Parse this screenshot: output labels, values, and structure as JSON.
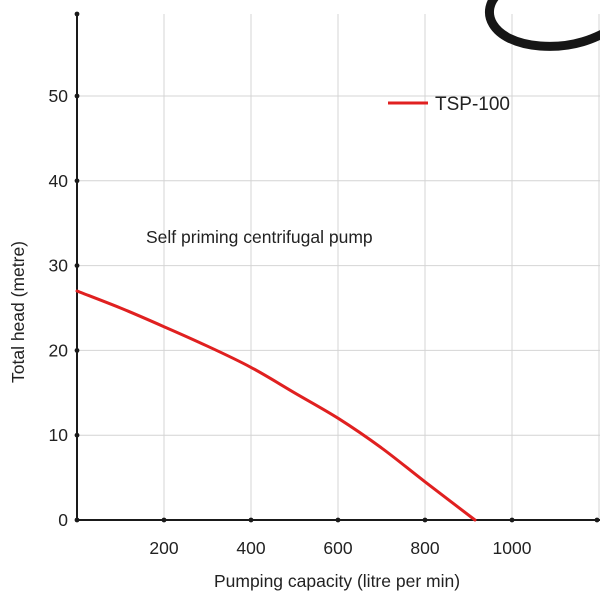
{
  "colors": {
    "series": "#e02020",
    "axis": "#1a1a1a",
    "grid": "#d4d4d4",
    "text": "#222222"
  },
  "chart_data": {
    "type": "line",
    "title": "",
    "annotation": "Self priming centrifugal pump",
    "xlabel": "Pumping capacity (litre per min)",
    "ylabel": "Total head (metre)",
    "xlim": [
      0,
      1200
    ],
    "ylim": [
      0,
      60
    ],
    "xticks": [
      200,
      400,
      600,
      800,
      1000
    ],
    "yticks": [
      0,
      10,
      20,
      30,
      40,
      50
    ],
    "grid": true,
    "legend": "top-right",
    "series": [
      {
        "name": "TSP-100",
        "color": "#e02020",
        "x": [
          0,
          100,
          200,
          300,
          400,
          500,
          600,
          700,
          800,
          915
        ],
        "y": [
          27,
          25,
          22.8,
          20.5,
          18,
          15,
          12,
          8.5,
          4.5,
          0
        ]
      }
    ]
  }
}
